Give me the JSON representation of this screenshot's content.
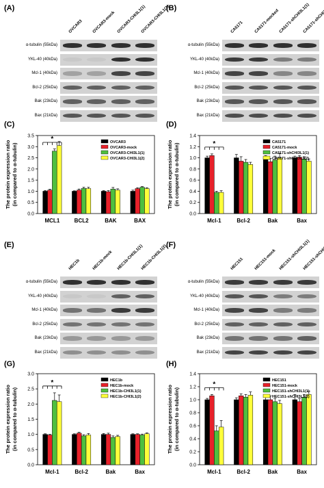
{
  "figure": {
    "panel_labels": [
      "(A)",
      "(B)",
      "(C)",
      "(D)",
      "(E)",
      "(F)",
      "(G)",
      "(H)"
    ],
    "colors": {
      "black": "#000000",
      "red": "#e8212a",
      "green": "#4fbf3f",
      "yellow": "#ffff3a",
      "band": "#1a1a1a",
      "strip": "#cfcfcf"
    }
  },
  "blots": [
    {
      "id": "A",
      "lanes": [
        "OVCAR3",
        "OVCAR3-mock",
        "OVCAR3-CHI3L1(1)",
        "OVCAR3-CHI3L1(2)"
      ],
      "rows": [
        {
          "label": "α-tubulin (55kDa)",
          "intensity": [
            0.85,
            0.85,
            0.85,
            0.85
          ]
        },
        {
          "label": "YKL-40 (40kDa)",
          "intensity": [
            0.05,
            0.05,
            0.85,
            0.85
          ]
        },
        {
          "label": "Mcl-1 (40kDa)",
          "intensity": [
            0.25,
            0.25,
            0.75,
            0.75
          ]
        },
        {
          "label": "Bcl-2 (25kDa)",
          "intensity": [
            0.6,
            0.6,
            0.6,
            0.6
          ]
        },
        {
          "label": "Bak (23kDa)",
          "intensity": [
            0.6,
            0.6,
            0.6,
            0.6
          ]
        },
        {
          "label": "Bax (21kDa)",
          "intensity": [
            0.65,
            0.65,
            0.65,
            0.65
          ]
        }
      ]
    },
    {
      "id": "B",
      "lanes": [
        "CA5171",
        "CA5171-mocked",
        "CA5171-shCHI3L1(1)",
        "CA5171-shCHI3L1(2)"
      ],
      "rows": [
        {
          "label": "α-tubulin (55kDa)",
          "intensity": [
            0.85,
            0.85,
            0.85,
            0.85
          ]
        },
        {
          "label": "YKL-40 (40kDa)",
          "intensity": [
            0.8,
            0.8,
            0.45,
            0.45
          ]
        },
        {
          "label": "Mcl-1 (40kDa)",
          "intensity": [
            0.75,
            0.75,
            0.4,
            0.4
          ]
        },
        {
          "label": "Bcl-2 (25kDa)",
          "intensity": [
            0.65,
            0.65,
            0.65,
            0.65
          ]
        },
        {
          "label": "Bak (23kDa)",
          "intensity": [
            0.65,
            0.65,
            0.65,
            0.65
          ]
        },
        {
          "label": "Bax (21kDa)",
          "intensity": [
            0.7,
            0.7,
            0.7,
            0.7
          ]
        }
      ]
    },
    {
      "id": "E",
      "lanes": [
        "HEC1b",
        "HEC1b-mock",
        "HEC1b-CHI3L1(1)",
        "HEC1b-CHI3L1(2)"
      ],
      "rows": [
        {
          "label": "α-tubulin (55kDa)",
          "intensity": [
            0.85,
            0.85,
            0.85,
            0.85
          ]
        },
        {
          "label": "YKL-40 (40kDa)",
          "intensity": [
            0.05,
            0.05,
            0.6,
            0.6
          ]
        },
        {
          "label": "Mcl-1 (40kDa)",
          "intensity": [
            0.5,
            0.5,
            0.8,
            0.8
          ]
        },
        {
          "label": "Bcl-2 (25kDa)",
          "intensity": [
            0.5,
            0.5,
            0.5,
            0.5
          ]
        },
        {
          "label": "Bak (23kDa)",
          "intensity": [
            0.3,
            0.3,
            0.3,
            0.3
          ]
        },
        {
          "label": "Bax (21kDa)",
          "intensity": [
            0.35,
            0.35,
            0.35,
            0.35
          ]
        }
      ]
    },
    {
      "id": "F",
      "lanes": [
        "HEC151",
        "HEC151-mock",
        "HEC151-shCHI3L1(1)",
        "HEC151-shCHI3L1(2)"
      ],
      "rows": [
        {
          "label": "α-tubulin (55kDa)",
          "intensity": [
            0.8,
            0.8,
            0.8,
            0.8
          ]
        },
        {
          "label": "YKL-40 (40kDa)",
          "intensity": [
            0.65,
            0.65,
            0.45,
            0.45
          ]
        },
        {
          "label": "Mcl-1 (40kDa)",
          "intensity": [
            0.75,
            0.75,
            0.45,
            0.45
          ]
        },
        {
          "label": "Bcl-2 (25kDa)",
          "intensity": [
            0.6,
            0.6,
            0.6,
            0.6
          ]
        },
        {
          "label": "Bak (23kDa)",
          "intensity": [
            0.5,
            0.5,
            0.5,
            0.6
          ]
        },
        {
          "label": "Bax (21kDa)",
          "intensity": [
            0.75,
            0.75,
            0.75,
            0.75
          ]
        }
      ]
    }
  ],
  "chart_data": [
    {
      "id": "C",
      "type": "bar",
      "ylabel": "The protein expression ratio\n(in compared to α-tubulin)",
      "categories": [
        "MCL1",
        "BCL2",
        "BAK",
        "BAX"
      ],
      "ylim": [
        0,
        3.5
      ],
      "yticks": [
        "0.0",
        "0.5",
        "1.0",
        "1.5",
        "2.0",
        "2.5",
        "3.0",
        "3.5"
      ],
      "legend_placement": "top-right",
      "series": [
        {
          "name": "OVCAR3",
          "color": "#000000",
          "values": [
            1.0,
            1.0,
            1.0,
            1.0
          ],
          "errors": [
            0.03,
            0.02,
            0.03,
            0.05
          ]
        },
        {
          "name": "OVCAR3-mock",
          "color": "#e8212a",
          "values": [
            1.05,
            1.05,
            0.98,
            1.12
          ],
          "errors": [
            0.04,
            0.05,
            0.05,
            0.04
          ]
        },
        {
          "name": "OVCAR3-CHI3L1(1)",
          "color": "#4fbf3f",
          "values": [
            2.8,
            1.13,
            1.1,
            1.18
          ],
          "errors": [
            0.1,
            0.05,
            0.07,
            0.03
          ]
        },
        {
          "name": "OVCAR3-CHI3L1(2)",
          "color": "#ffff3a",
          "values": [
            3.05,
            1.12,
            1.05,
            1.12
          ],
          "errors": [
            0.18,
            0.06,
            0.06,
            0.04
          ]
        }
      ],
      "significance": {
        "label": "*",
        "category": "MCL1"
      }
    },
    {
      "id": "D",
      "type": "bar",
      "ylabel": "The protein expression ratio\n(in compared to α-tubulin)",
      "categories": [
        "Mcl-1",
        "Bcl-2",
        "Bak",
        "Bax"
      ],
      "ylim": [
        0,
        1.4
      ],
      "yticks": [
        "0.0",
        "0.2",
        "0.4",
        "0.6",
        "0.8",
        "1.0",
        "1.2",
        "1.4"
      ],
      "legend_placement": "top-right",
      "series": [
        {
          "name": "CA5171",
          "color": "#000000",
          "values": [
            1.0,
            1.0,
            1.0,
            1.0
          ],
          "errors": [
            0.03,
            0.06,
            0.04,
            0.03
          ]
        },
        {
          "name": "CA5171-mock",
          "color": "#e8212a",
          "values": [
            1.04,
            0.94,
            0.93,
            1.01
          ],
          "errors": [
            0.03,
            0.08,
            0.06,
            0.03
          ]
        },
        {
          "name": "CA5171-shCHI3L1(1)",
          "color": "#4fbf3f",
          "values": [
            0.38,
            0.92,
            0.96,
            0.98
          ],
          "errors": [
            0.02,
            0.05,
            0.07,
            0.04
          ]
        },
        {
          "name": "CA5171-shCHI3L1(2)",
          "color": "#ffff3a",
          "values": [
            0.38,
            0.88,
            1.0,
            0.94
          ],
          "errors": [
            0.03,
            0.04,
            0.08,
            0.04
          ]
        }
      ],
      "significance": {
        "label": "*",
        "category": "Mcl-1"
      }
    },
    {
      "id": "G",
      "type": "bar",
      "ylabel": "The protein expression ratio\n(in compared to α-tubulin)",
      "categories": [
        "Mcl-1",
        "Bcl-2",
        "Bak",
        "Bax"
      ],
      "ylim": [
        0,
        3.0
      ],
      "yticks": [
        "0.0",
        "0.5",
        "1.0",
        "1.5",
        "2.0",
        "2.5",
        "3.0"
      ],
      "legend_placement": "top-right",
      "series": [
        {
          "name": "HEC1b",
          "color": "#000000",
          "values": [
            1.0,
            1.0,
            1.0,
            1.0
          ],
          "errors": [
            0.02,
            0.02,
            0.03,
            0.02
          ]
        },
        {
          "name": "HEC1b-mock",
          "color": "#e8212a",
          "values": [
            0.98,
            1.04,
            1.0,
            1.0
          ],
          "errors": [
            0.02,
            0.03,
            0.04,
            0.02
          ]
        },
        {
          "name": "HEC1b-CHI3L1(1)",
          "color": "#4fbf3f",
          "values": [
            2.12,
            0.95,
            0.9,
            0.98
          ],
          "errors": [
            0.25,
            0.04,
            0.05,
            0.03
          ]
        },
        {
          "name": "HEC1b-CHI3L1(2)",
          "color": "#ffff3a",
          "values": [
            2.08,
            0.98,
            0.93,
            1.02
          ],
          "errors": [
            0.22,
            0.05,
            0.04,
            0.03
          ]
        }
      ],
      "significance": {
        "label": "*",
        "category": "Mcl-1"
      }
    },
    {
      "id": "H",
      "type": "bar",
      "ylabel": "The protein expression ratio\n(in compared to α-tubulin)",
      "categories": [
        "Mcl-1",
        "Bcl-2",
        "Bak",
        "Bax"
      ],
      "ylim": [
        0,
        1.4
      ],
      "yticks": [
        "0.0",
        "0.2",
        "0.4",
        "0.6",
        "0.8",
        "1.0",
        "1.2",
        "1.4"
      ],
      "legend_placement": "top-right",
      "series": [
        {
          "name": "HEC151",
          "color": "#000000",
          "values": [
            1.0,
            1.0,
            1.0,
            1.0
          ],
          "errors": [
            0.02,
            0.03,
            0.04,
            0.08
          ]
        },
        {
          "name": "HEC151-mock",
          "color": "#e8212a",
          "values": [
            1.06,
            1.06,
            1.0,
            0.97
          ],
          "errors": [
            0.02,
            0.03,
            0.06,
            0.05
          ]
        },
        {
          "name": "HEC151-shCHI3L1(1)",
          "color": "#4fbf3f",
          "values": [
            0.52,
            1.04,
            0.97,
            1.04
          ],
          "errors": [
            0.08,
            0.04,
            0.05,
            0.04
          ]
        },
        {
          "name": "HEC151-shCHI3L1(2)",
          "color": "#ffff3a",
          "values": [
            0.58,
            1.07,
            0.94,
            1.08
          ],
          "errors": [
            0.1,
            0.05,
            0.05,
            0.05
          ]
        }
      ],
      "significance": {
        "label": "*",
        "category": "Mcl-1"
      }
    }
  ]
}
